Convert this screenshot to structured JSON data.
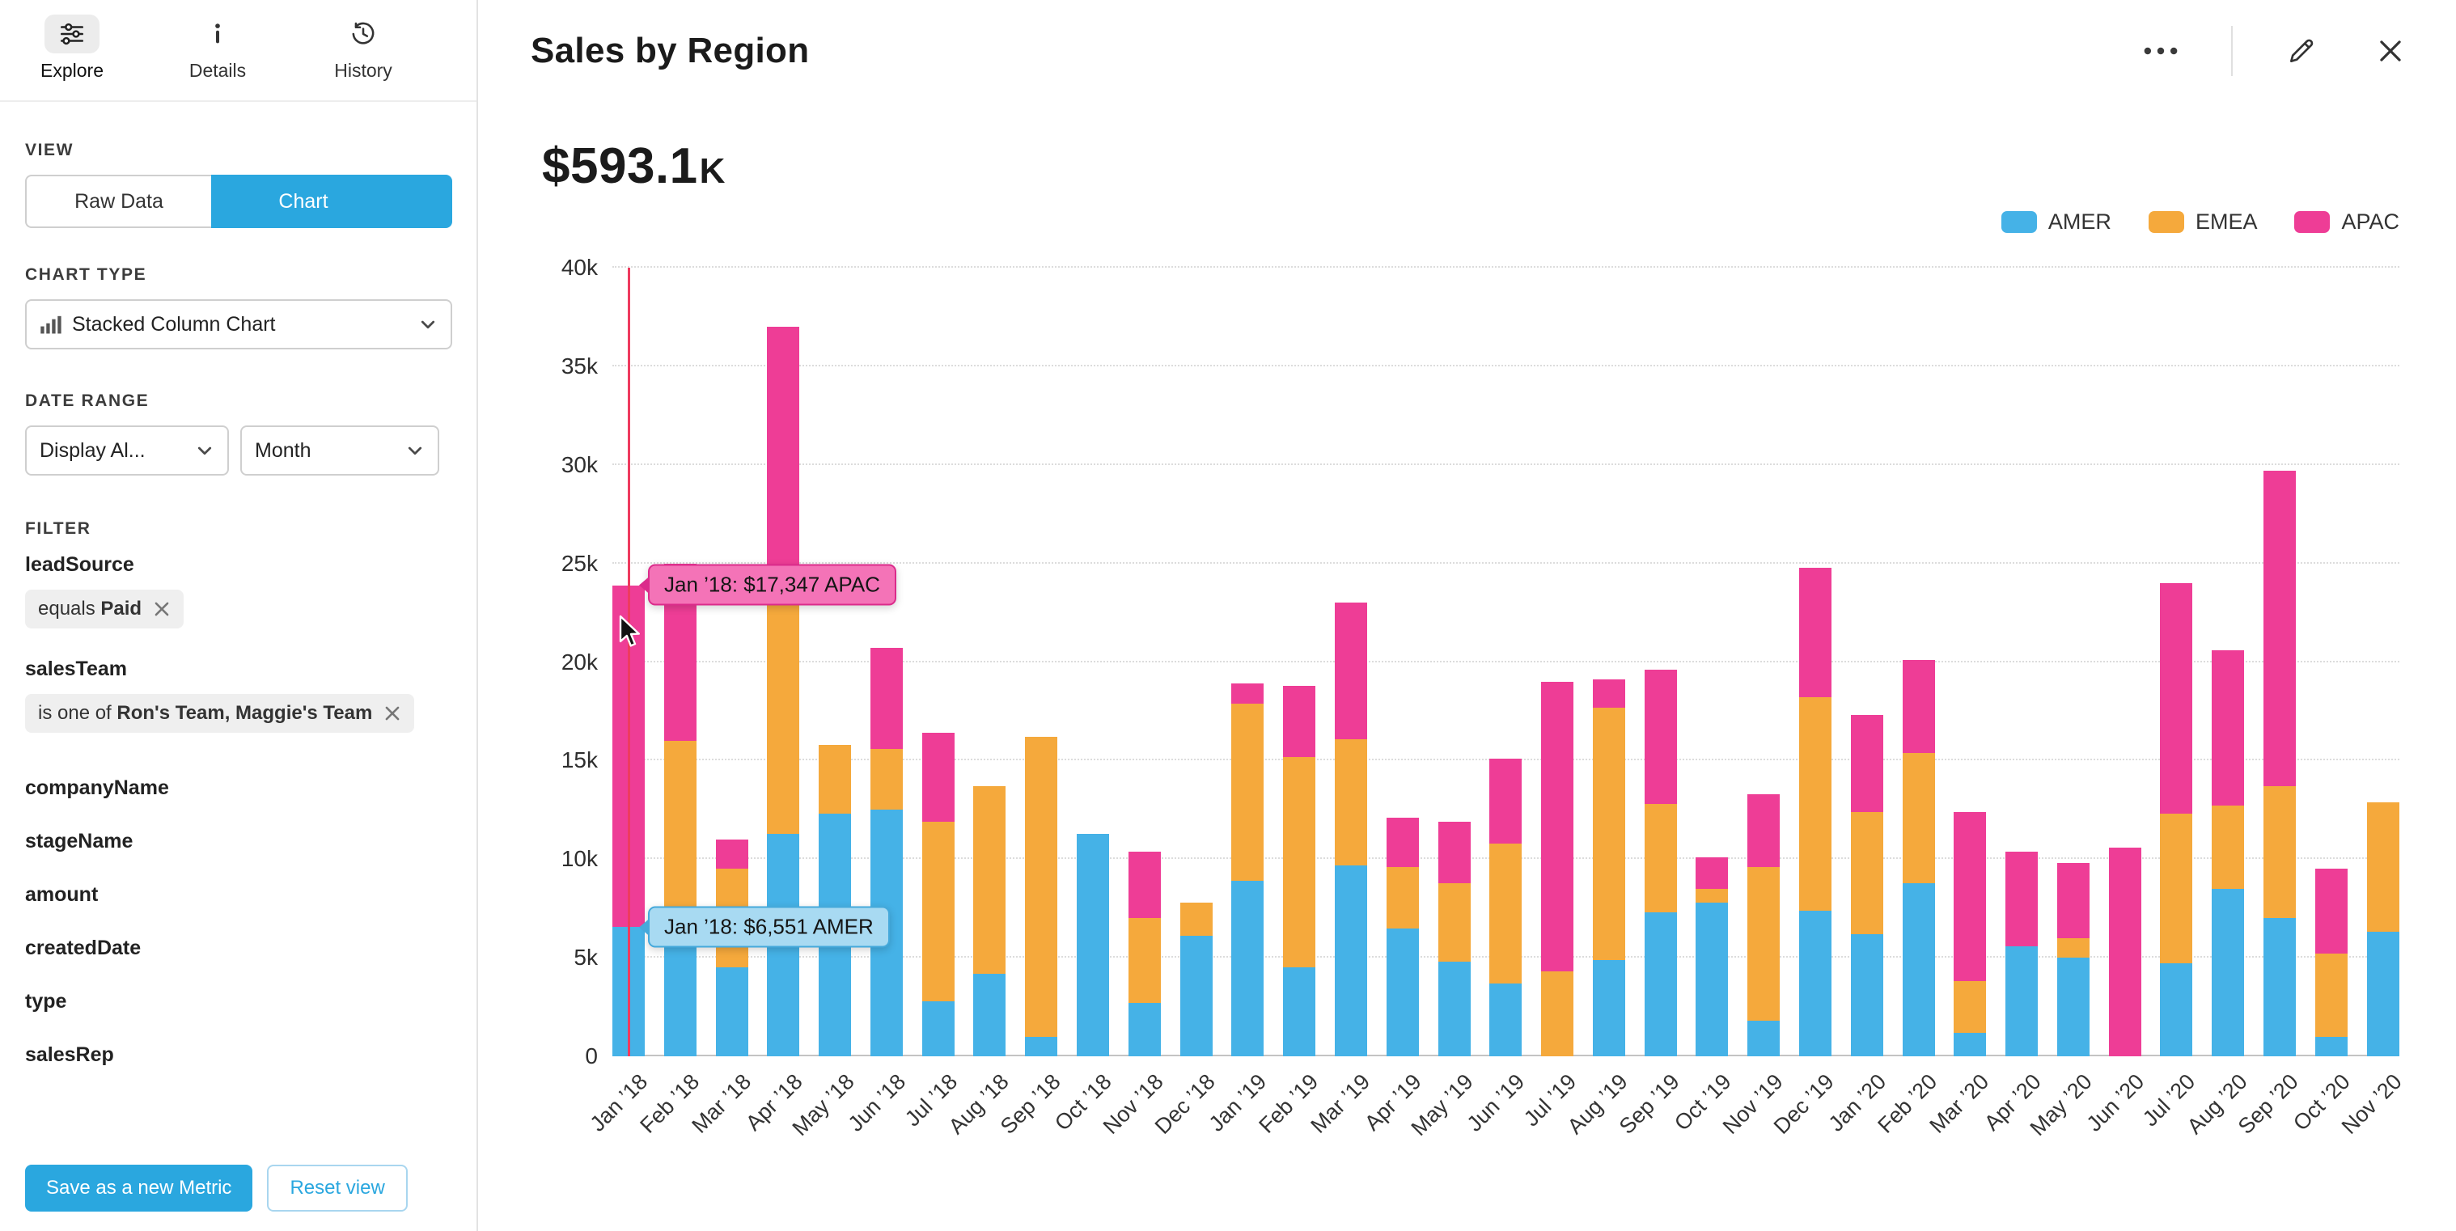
{
  "header": {
    "tabs": [
      {
        "label": "Explore"
      },
      {
        "label": "Details"
      },
      {
        "label": "History"
      }
    ],
    "title": "Sales by Region"
  },
  "sidebar": {
    "view_label": "VIEW",
    "view_toggle": {
      "raw": "Raw Data",
      "chart": "Chart"
    },
    "chart_type_label": "CHART TYPE",
    "chart_type_value": "Stacked Column Chart",
    "date_range_label": "DATE RANGE",
    "date_display_value": "Display Al...",
    "date_granularity_value": "Month",
    "filter_label": "FILTER",
    "filters": [
      {
        "field": "leadSource",
        "prefix": "equals",
        "value": "Paid"
      },
      {
        "field": "salesTeam",
        "prefix": "is one of",
        "value": "Ron's Team, Maggie's Team"
      }
    ],
    "fields": [
      "companyName",
      "stageName",
      "amount",
      "createdDate",
      "type",
      "salesRep"
    ],
    "save_button": "Save as a new Metric",
    "reset_button": "Reset view"
  },
  "main": {
    "kpi_value": "$593.1",
    "kpi_suffix": "K",
    "tooltips": [
      {
        "category": "Jan ’18",
        "series": "APAC",
        "text": "Jan ’18: $17,347 APAC",
        "bg": "#f473b7",
        "border": "#db2b8b"
      },
      {
        "category": "Jan ’18",
        "series": "AMER",
        "text": "Jan ’18: $6,551 AMER",
        "bg": "#a8daf2",
        "border": "#45a9db"
      }
    ]
  },
  "chart_data": {
    "type": "bar",
    "stacked": true,
    "title": "Sales by Region",
    "xlabel": "",
    "ylabel": "",
    "ylim": [
      0,
      40000
    ],
    "yticks": [
      "0",
      "5k",
      "10k",
      "15k",
      "20k",
      "25k",
      "30k",
      "35k",
      "40k"
    ],
    "grid": true,
    "legend_position": "top-right",
    "hover": {
      "category": "Jan ’18",
      "line_color": "#ee3b5f"
    },
    "categories": [
      "Jan ’18",
      "Feb ’18",
      "Mar ’18",
      "Apr ’18",
      "May ’18",
      "Jun ’18",
      "Jul ’18",
      "Aug ’18",
      "Sep ’18",
      "Oct ’18",
      "Nov ’18",
      "Dec ’18",
      "Jan ’19",
      "Feb ’19",
      "Mar ’19",
      "Apr ’19",
      "May ’19",
      "Jun ’19",
      "Jul ’19",
      "Aug ’19",
      "Sep ’19",
      "Oct ’19",
      "Nov ’19",
      "Dec ’19",
      "Jan ’20",
      "Feb ’20",
      "Mar ’20",
      "Apr ’20",
      "May ’20",
      "Jun ’20",
      "Jul ’20",
      "Aug ’20",
      "Sep ’20",
      "Oct ’20",
      "Nov ’20"
    ],
    "series": [
      {
        "name": "AMER",
        "color": "#45b2e7",
        "values": [
          6551,
          7300,
          4500,
          11300,
          12300,
          12500,
          2800,
          4200,
          1000,
          11300,
          2700,
          6100,
          8900,
          4500,
          9700,
          6500,
          4800,
          3700,
          0,
          4900,
          7300,
          7800,
          1800,
          7400,
          6200,
          8800,
          1200,
          5600,
          5000,
          0,
          4700,
          8500,
          7000,
          1000,
          6300
        ]
      },
      {
        "name": "EMEA",
        "color": "#f5a93c",
        "values": [
          0,
          8700,
          5000,
          13200,
          3500,
          3100,
          9100,
          9500,
          15200,
          0,
          4300,
          1700,
          9000,
          10700,
          6400,
          3100,
          4000,
          7100,
          4300,
          12800,
          5500,
          700,
          7800,
          10800,
          6200,
          6600,
          2600,
          0,
          1000,
          0,
          7600,
          4200,
          6700,
          4200,
          6600
        ]
      },
      {
        "name": "APAC",
        "color": "#ee3d96",
        "values": [
          17347,
          9000,
          1500,
          12500,
          0,
          5100,
          4500,
          0,
          0,
          0,
          3400,
          0,
          1000,
          3600,
          6900,
          2500,
          3100,
          4300,
          14700,
          1400,
          6800,
          1600,
          3700,
          6600,
          4900,
          4700,
          8600,
          4800,
          3800,
          10600,
          11700,
          7900,
          16000,
          4300,
          0
        ]
      }
    ]
  }
}
